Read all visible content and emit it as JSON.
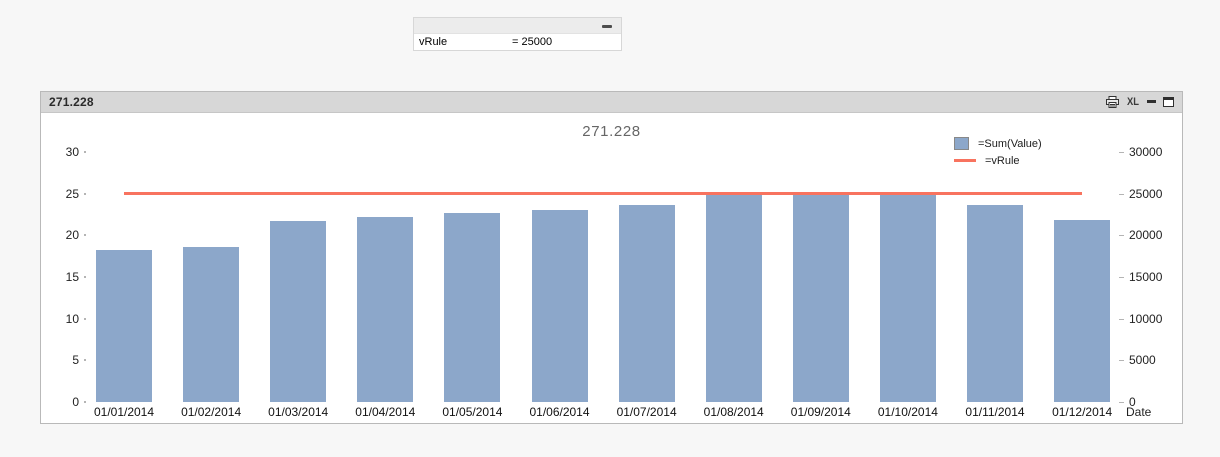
{
  "page": {
    "background": "#f7f7f7"
  },
  "input_box": {
    "variable": {
      "name": "vRule",
      "value": "= 25000"
    }
  },
  "chart_window": {
    "caption": {
      "title": "271.228",
      "excel_label": "XL",
      "icons": [
        "printer-icon",
        "excel-export-button",
        "minimize-icon",
        "maximize-icon"
      ]
    }
  },
  "chart_data": {
    "type": "bar",
    "title": "271.228",
    "categories": [
      "01/01/2014",
      "01/02/2014",
      "01/03/2014",
      "01/04/2014",
      "01/05/2014",
      "01/06/2014",
      "01/07/2014",
      "01/08/2014",
      "01/09/2014",
      "01/10/2014",
      "01/11/2014",
      "01/12/2014"
    ],
    "series": [
      {
        "name": "=Sum(Value)",
        "type": "bar",
        "axis": "left",
        "color": "#8ca7ca",
        "values": [
          18.3,
          18.6,
          21.7,
          22.2,
          22.7,
          23.1,
          23.7,
          25.1,
          25.1,
          25.1,
          23.7,
          21.9
        ]
      },
      {
        "name": "=vRule",
        "type": "line",
        "axis": "right",
        "color": "#f8735f",
        "value": 25000
      }
    ],
    "xlabel": "Date",
    "left_axis": {
      "range": [
        0,
        30
      ],
      "ticks": [
        0,
        5,
        10,
        15,
        20,
        25,
        30
      ]
    },
    "right_axis": {
      "range": [
        0,
        30000
      ],
      "ticks": [
        0,
        5000,
        10000,
        15000,
        20000,
        25000,
        30000
      ]
    },
    "legend_position": "top-right",
    "grid": false,
    "total_label": "271.228"
  }
}
